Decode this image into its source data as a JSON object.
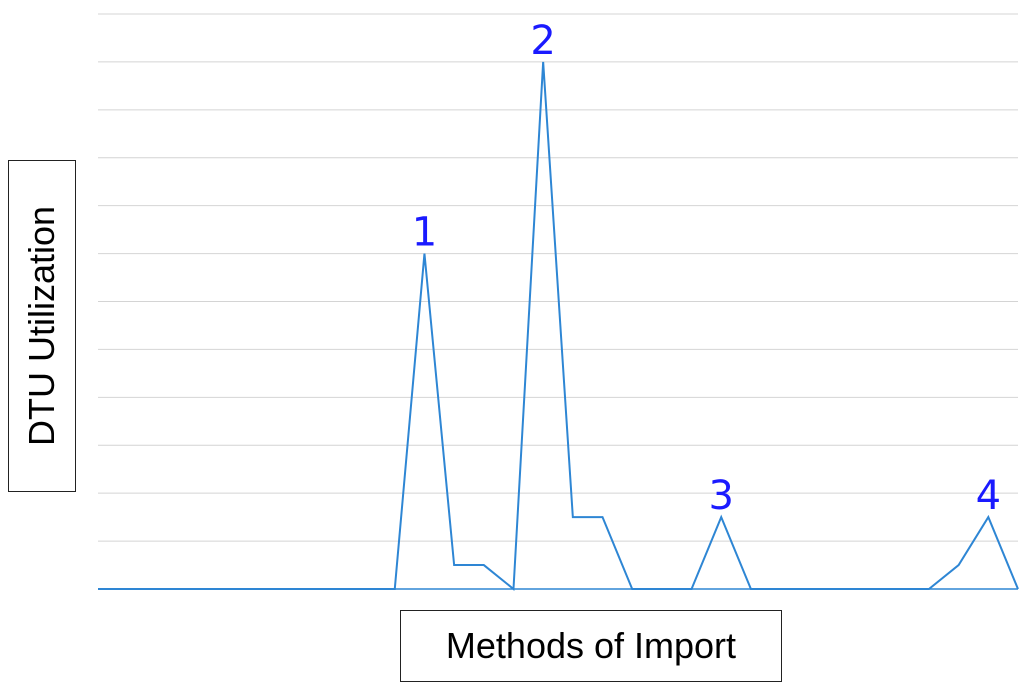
{
  "chart_data": {
    "type": "line",
    "title": "",
    "xlabel": "Methods of Import",
    "ylabel": "DTU Utilization",
    "grid": true,
    "ylim": [
      0,
      12
    ],
    "x": [
      0,
      1,
      2,
      3,
      4,
      5,
      6,
      7,
      8,
      9,
      10,
      11,
      12,
      13,
      14,
      15,
      16,
      17,
      18,
      19,
      20,
      21,
      22,
      23,
      24,
      25,
      26,
      27,
      28,
      29,
      30,
      31
    ],
    "series": [
      {
        "color": "#2e86d4",
        "values": [
          0,
          0,
          0,
          0,
          0,
          0,
          0,
          0,
          0,
          0,
          0,
          7,
          0.5,
          0.5,
          0,
          11,
          1.5,
          1.5,
          0,
          0,
          0,
          1.5,
          0,
          0,
          0,
          0,
          0,
          0,
          0,
          0.5,
          1.5,
          0
        ]
      }
    ],
    "annotations": [
      {
        "text": "1",
        "x": 11,
        "y": 7
      },
      {
        "text": "2",
        "x": 15,
        "y": 11
      },
      {
        "text": "3",
        "x": 21,
        "y": 1.5
      },
      {
        "text": "4",
        "x": 30,
        "y": 1.5
      }
    ],
    "annotation_color": "#1a1aff"
  }
}
